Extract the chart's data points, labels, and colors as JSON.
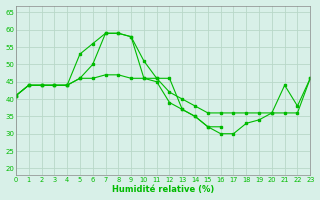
{
  "xlabel": "Humidité relative (%)",
  "ylabel": "",
  "background_color": "#d8f0e8",
  "grid_color": "#b8d8c8",
  "line_color": "#00bb00",
  "xlim": [
    0,
    23
  ],
  "ylim": [
    18,
    67
  ],
  "yticks": [
    20,
    25,
    30,
    35,
    40,
    45,
    50,
    55,
    60,
    65
  ],
  "xticks": [
    0,
    1,
    2,
    3,
    4,
    5,
    6,
    7,
    8,
    9,
    10,
    11,
    12,
    13,
    14,
    15,
    16,
    17,
    18,
    19,
    20,
    21,
    22,
    23
  ],
  "series": [
    {
      "x": [
        0,
        1,
        2,
        3,
        4,
        5,
        6,
        7,
        8,
        9,
        10,
        11,
        12,
        13,
        14,
        15,
        16,
        17,
        18,
        19,
        20,
        21,
        22,
        23
      ],
      "y": [
        41,
        44,
        44,
        44,
        44,
        46,
        50,
        59,
        59,
        58,
        51,
        46,
        46,
        37,
        35,
        32,
        32,
        null,
        null,
        null,
        null,
        null,
        null,
        null
      ]
    },
    {
      "x": [
        0,
        1,
        2,
        3,
        4,
        5,
        6,
        7,
        8,
        9,
        10,
        11,
        12,
        13,
        14,
        15,
        16,
        17,
        18,
        19,
        20,
        21,
        22,
        23
      ],
      "y": [
        41,
        44,
        44,
        44,
        44,
        46,
        46,
        47,
        47,
        46,
        46,
        46,
        42,
        40,
        38,
        36,
        36,
        36,
        36,
        36,
        36,
        36,
        36,
        46
      ]
    },
    {
      "x": [
        0,
        1,
        2,
        3,
        4,
        5,
        6,
        7,
        8,
        9,
        10,
        11,
        12,
        13,
        14,
        15,
        16,
        17,
        18,
        19,
        20,
        21,
        22,
        23
      ],
      "y": [
        41,
        44,
        44,
        44,
        44,
        53,
        56,
        59,
        59,
        58,
        46,
        45,
        39,
        37,
        35,
        32,
        30,
        30,
        33,
        34,
        36,
        44,
        38,
        46
      ]
    }
  ]
}
